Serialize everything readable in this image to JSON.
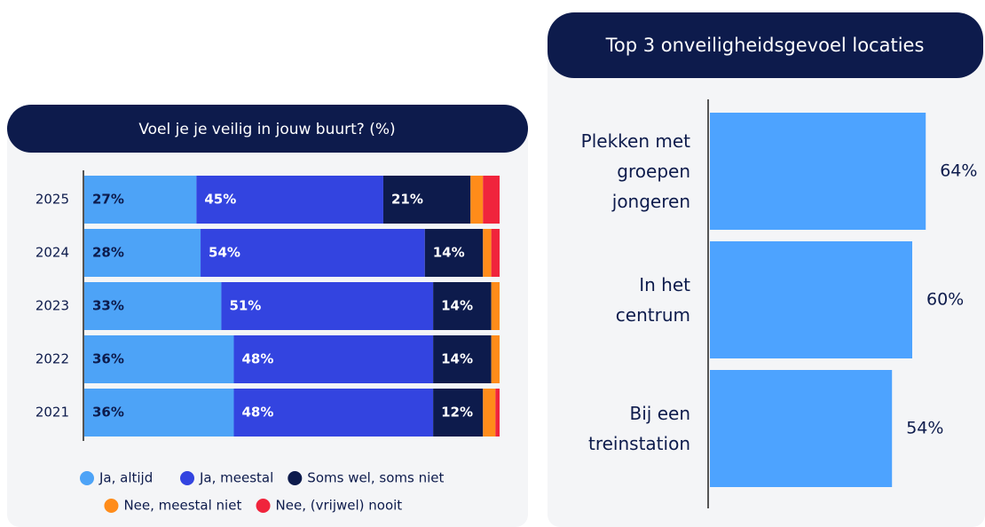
{
  "chart_data": [
    {
      "type": "stacked_bar",
      "title": "Voel je je veilig in jouw buurt? (%)",
      "categories": [
        "2025",
        "2024",
        "2023",
        "2022",
        "2021"
      ],
      "xlim": [
        0,
        100
      ],
      "series": [
        {
          "name": "Ja, altijd",
          "color": "#4da3f7",
          "values": [
            27,
            28,
            33,
            36,
            36
          ],
          "value_labels": [
            "27%",
            "28%",
            "33%",
            "36%",
            "36%"
          ]
        },
        {
          "name": "Ja, meestal",
          "color": "#3344e0",
          "values": [
            45,
            54,
            51,
            48,
            48
          ],
          "value_labels": [
            "45%",
            "54%",
            "51%",
            "48%",
            "48%"
          ]
        },
        {
          "name": "Soms wel, soms niet",
          "color": "#0d1b4c",
          "values": [
            21,
            14,
            14,
            14,
            12
          ],
          "value_labels": [
            "21%",
            "14%",
            "14%",
            "14%",
            "12%"
          ]
        },
        {
          "name": "Nee, meestal niet",
          "color": "#ff8c1a",
          "values": [
            3,
            2,
            2,
            2,
            3
          ]
        },
        {
          "name": "Nee, (vrijwel) nooit",
          "color": "#f0243c",
          "values": [
            4,
            2,
            0,
            0,
            1
          ]
        }
      ]
    },
    {
      "type": "bar",
      "title": "Top 3 onveiligheidsgevoel locaties",
      "categories": [
        "Plekken met groepen jongeren",
        "In het centrum",
        "Bij een treinstation"
      ],
      "values": [
        64,
        60,
        54
      ],
      "value_labels": [
        "64%",
        "60%",
        "54%"
      ],
      "color": "#4da3ff",
      "xlim": [
        0,
        80
      ]
    }
  ]
}
